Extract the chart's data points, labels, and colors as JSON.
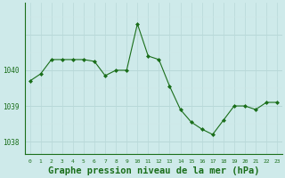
{
  "x": [
    0,
    1,
    2,
    3,
    4,
    5,
    6,
    7,
    8,
    9,
    10,
    11,
    12,
    13,
    14,
    15,
    16,
    17,
    18,
    19,
    20,
    21,
    22,
    23
  ],
  "y": [
    1039.7,
    1039.9,
    1040.3,
    1040.3,
    1040.3,
    1040.3,
    1040.25,
    1039.85,
    1040.0,
    1040.0,
    1041.3,
    1040.4,
    1040.3,
    1039.55,
    1038.9,
    1038.55,
    1038.35,
    1038.2,
    1038.6,
    1039.0,
    1039.0,
    1038.9,
    1039.1,
    1039.1
  ],
  "bg_color": "#ceeaea",
  "line_color": "#1a6e1a",
  "marker_color": "#1a6e1a",
  "grid_color_major": "#b8d8d8",
  "grid_color_minor": "#d0e8e8",
  "axis_color": "#1a6e1a",
  "xlabel": "Graphe pression niveau de la mer (hPa)",
  "xlabel_fontsize": 7.5,
  "tick_label_color": "#1a6e1a",
  "yticks": [
    1038,
    1039,
    1040
  ],
  "ylim": [
    1037.65,
    1041.9
  ],
  "xlim": [
    -0.5,
    23.5
  ],
  "figsize": [
    3.2,
    2.0
  ],
  "dpi": 100
}
